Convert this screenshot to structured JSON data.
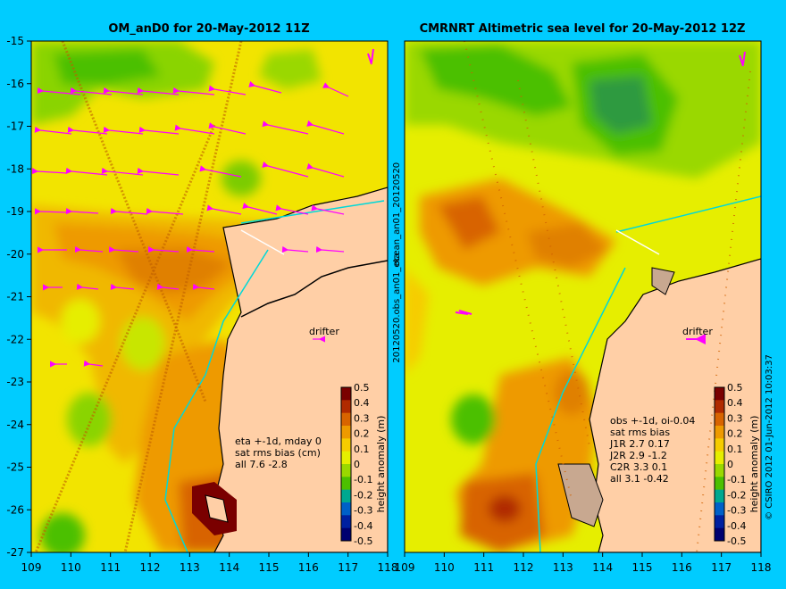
{
  "left_panel": {
    "title": "OM_anD0 for 20-May-2012 11Z",
    "annotation_lines": [
      "eta +-1d, mday 0",
      "sat rms bias (cm)",
      "all 7.6 -2.8"
    ],
    "drifter_label": "drifter",
    "side_text_top": "ocean_an01_20120520",
    "side_text_bottom": "20120520.obs_an01_eta"
  },
  "right_panel": {
    "title": "CMRNRT Altimetric sea level  for 20-May-2012 12Z",
    "annotation_lines": [
      "obs +-1d, oi-0.04",
      "sat rms bias",
      "J1R   2.7 0.17",
      "J2R   2.9 -1.2",
      "C2R   3.3 0.1",
      "all 3.1 -0.42"
    ],
    "drifter_label": "drifter",
    "credit": "© CSIRO 2012   01-Jun-2012 10:03:37"
  },
  "axes": {
    "x_ticks": [
      "109",
      "110",
      "111",
      "112",
      "113",
      "114",
      "115",
      "116",
      "117",
      "118"
    ],
    "y_ticks": [
      "-15",
      "-16",
      "-17",
      "-18",
      "-19",
      "-20",
      "-21",
      "-22",
      "-23",
      "-24",
      "-25",
      "-26",
      "-27"
    ]
  },
  "colorbar": {
    "label": "height anomaly (m)",
    "ticks": [
      "0.5",
      "0.4",
      "0.3",
      "0.2",
      "0.1",
      "0",
      "-0.1",
      "-0.2",
      "-0.3",
      "-0.4",
      "-0.5"
    ],
    "colors": [
      "#7a0000",
      "#b02a00",
      "#d86400",
      "#ee9a00",
      "#f6cc00",
      "#e6ee00",
      "#9ad800",
      "#4cc000",
      "#00a890",
      "#0060c8",
      "#0020a0",
      "#000070"
    ]
  },
  "colors": {
    "background": "#00ccff",
    "land": "#ffcfa6",
    "drifter_arrow": "#ff00ff",
    "coastline": "#000000"
  }
}
